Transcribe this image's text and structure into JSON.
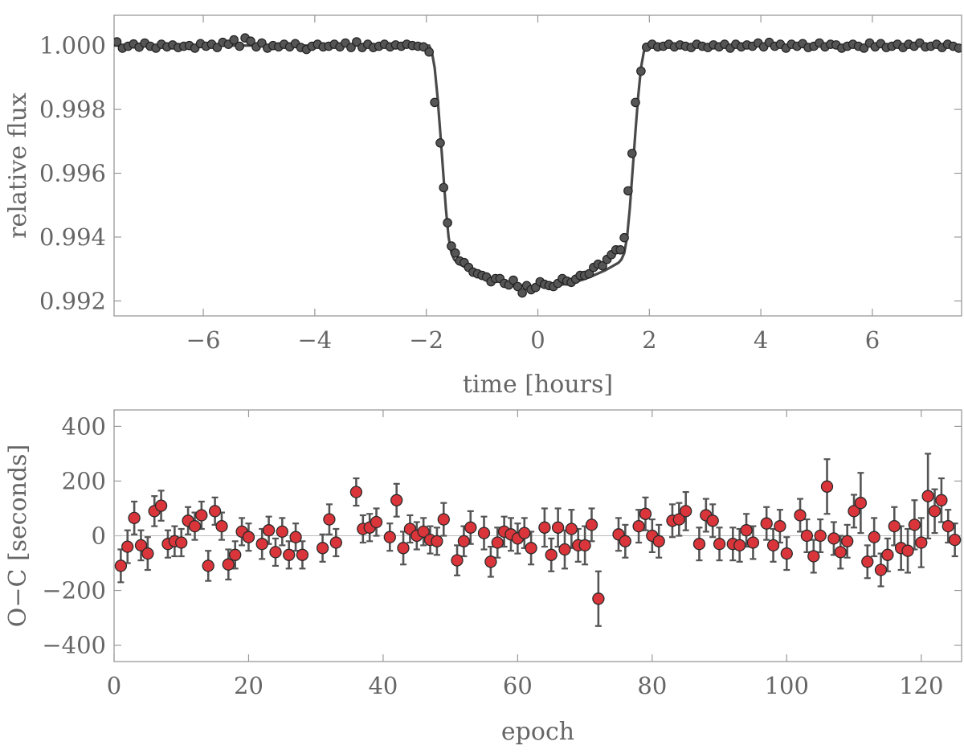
{
  "chart_data": [
    {
      "type": "scatter",
      "name": "transit-light-curve",
      "xlabel": "time [hours]",
      "ylabel": "relative flux",
      "xlim": [
        -7.6,
        7.6
      ],
      "ylim": [
        0.99153,
        1.00095
      ],
      "xticks": [
        -6,
        -4,
        -2,
        0,
        2,
        4,
        6
      ],
      "xtick_labels": [
        "−6",
        "−4",
        "−2",
        "0",
        "2",
        "4",
        "6"
      ],
      "yticks": [
        0.992,
        0.994,
        0.996,
        0.998,
        1.0
      ],
      "ytick_labels": [
        "0.992",
        "0.994",
        "0.996",
        "0.998",
        "1.000"
      ],
      "marker_color": "#555555",
      "model_color": "#4a4a4a",
      "model_line": {
        "x": [
          -7.6,
          -1.95,
          -1.9,
          -1.85,
          -1.8,
          -1.75,
          -1.7,
          -1.65,
          -1.6,
          -1.55,
          -1.5,
          -1.45,
          -1.4,
          -1.2,
          -1.0,
          -0.8,
          -0.6,
          -0.4,
          -0.2,
          0,
          0.2,
          0.4,
          0.6,
          0.8,
          1.0,
          1.2,
          1.4,
          1.45,
          1.5,
          1.55,
          1.6,
          1.65,
          1.7,
          1.75,
          1.8,
          1.85,
          1.9,
          1.95,
          7.6
        ],
        "y": [
          1.0,
          1.0,
          0.9998,
          0.9993,
          0.9984,
          0.9973,
          0.9961,
          0.9949,
          0.994,
          0.9935,
          0.9933,
          0.9932,
          0.99315,
          0.99295,
          0.9928,
          0.99266,
          0.99256,
          0.9925,
          0.99247,
          0.99246,
          0.99247,
          0.9925,
          0.99256,
          0.99266,
          0.9928,
          0.99295,
          0.99315,
          0.9932,
          0.9933,
          0.9935,
          0.994,
          0.9949,
          0.9961,
          0.9973,
          0.9984,
          0.9993,
          0.9998,
          1.0,
          1.0
        ]
      },
      "points": {
        "x": [
          -7.55,
          -7.45,
          -7.35,
          -7.25,
          -7.15,
          -7.05,
          -6.95,
          -6.85,
          -6.75,
          -6.65,
          -6.55,
          -6.45,
          -6.35,
          -6.25,
          -6.15,
          -6.05,
          -5.95,
          -5.85,
          -5.75,
          -5.65,
          -5.55,
          -5.45,
          -5.35,
          -5.25,
          -5.15,
          -5.05,
          -4.95,
          -4.85,
          -4.75,
          -4.65,
          -4.55,
          -4.45,
          -4.35,
          -4.25,
          -4.15,
          -4.05,
          -3.95,
          -3.85,
          -3.75,
          -3.65,
          -3.55,
          -3.45,
          -3.35,
          -3.25,
          -3.15,
          -3.05,
          -2.95,
          -2.85,
          -2.75,
          -2.65,
          -2.55,
          -2.45,
          -2.35,
          -2.25,
          -2.15,
          -2.05,
          -1.95,
          -1.85,
          -1.75,
          -1.69,
          -1.62,
          -1.55,
          -1.48,
          -1.4,
          -1.32,
          -1.24,
          -1.16,
          -1.08,
          -1.0,
          -0.92,
          -0.84,
          -0.76,
          -0.68,
          -0.6,
          -0.52,
          -0.44,
          -0.36,
          -0.28,
          -0.2,
          -0.12,
          -0.04,
          0.04,
          0.12,
          0.2,
          0.28,
          0.36,
          0.44,
          0.52,
          0.6,
          0.68,
          0.76,
          0.84,
          0.92,
          1.0,
          1.08,
          1.16,
          1.24,
          1.32,
          1.4,
          1.48,
          1.55,
          1.62,
          1.69,
          1.75,
          1.85,
          1.95,
          2.05,
          2.15,
          2.25,
          2.35,
          2.45,
          2.55,
          2.65,
          2.75,
          2.85,
          2.95,
          3.05,
          3.15,
          3.25,
          3.35,
          3.45,
          3.55,
          3.65,
          3.75,
          3.85,
          3.95,
          4.05,
          4.15,
          4.25,
          4.35,
          4.45,
          4.55,
          4.65,
          4.75,
          4.85,
          4.95,
          5.05,
          5.15,
          5.25,
          5.35,
          5.45,
          5.55,
          5.65,
          5.75,
          5.85,
          5.95,
          6.05,
          6.15,
          6.25,
          6.35,
          6.45,
          6.55,
          6.65,
          6.75,
          6.85,
          6.95,
          7.05,
          7.15,
          7.25,
          7.35,
          7.45,
          7.55
        ],
        "y": [
          1.00012,
          0.99992,
          0.99998,
          1.00005,
          0.99995,
          1.00008,
          0.99998,
          0.99992,
          1.00004,
          0.99996,
          1.00002,
          0.99994,
          0.99998,
          1.0,
          0.99992,
          1.00006,
          0.99998,
          1.00004,
          0.99994,
          1.0001,
          1.00004,
          1.00018,
          0.99998,
          1.00024,
          1.00014,
          0.99996,
          1.00008,
          0.99992,
          1.0,
          0.99996,
          1.00004,
          0.99996,
          1.00006,
          0.99994,
          0.99988,
          0.99998,
          1.00004,
          0.99996,
          0.99998,
          1.00004,
          0.99996,
          1.00008,
          0.99994,
          1.00012,
          0.99994,
          1.00004,
          0.99994,
          0.99998,
          1.00004,
          0.99996,
          1.00002,
          0.99998,
          1.00004,
          1.0,
          0.99998,
          0.99996,
          0.9998,
          0.99822,
          0.99695,
          0.99555,
          0.99445,
          0.99372,
          0.9935,
          0.99325,
          0.9932,
          0.99305,
          0.9929,
          0.99285,
          0.9928,
          0.99275,
          0.9926,
          0.9927,
          0.9927,
          0.99255,
          0.9925,
          0.99265,
          0.99245,
          0.99225,
          0.99248,
          0.99235,
          0.99242,
          0.9926,
          0.99252,
          0.99248,
          0.99245,
          0.99255,
          0.9927,
          0.99262,
          0.99258,
          0.99268,
          0.9928,
          0.9928,
          0.99285,
          0.99305,
          0.99315,
          0.9931,
          0.9933,
          0.99345,
          0.9936,
          0.9936,
          0.99398,
          0.99545,
          0.99662,
          0.99822,
          0.9992,
          0.99995,
          1.00004,
          0.99996,
          0.99998,
          1.00004,
          0.99996,
          1.00002,
          0.99998,
          0.99994,
          1.00004,
          0.99998,
          0.99994,
          1.00002,
          0.99996,
          1.00004,
          0.99992,
          1.00004,
          0.99996,
          1.00002,
          0.99998,
          1.00008,
          0.99996,
          1.0001,
          0.99998,
          1.00004,
          0.99992,
          1.00004,
          0.99998,
          1.00006,
          0.99994,
          0.99998,
          1.00008,
          0.99996,
          1.00004,
          1.00002,
          0.99992,
          0.99998,
          1.00004,
          0.99998,
          0.99992,
          1.00008,
          0.99996,
          1.00006,
          0.99994,
          0.99998,
          1.00004,
          0.99994,
          1.00004,
          0.99998,
          1.00008,
          0.99996,
          0.99998,
          1.00004,
          0.99994,
          1.00004,
          0.99998,
          0.99992
        ]
      }
    },
    {
      "type": "scatter",
      "name": "o-c-residuals",
      "xlabel": "epoch",
      "ylabel": "O−C [seconds]",
      "xlim": [
        0,
        126
      ],
      "ylim": [
        -460,
        460
      ],
      "xticks": [
        0,
        20,
        40,
        60,
        80,
        100,
        120
      ],
      "xtick_labels": [
        "0",
        "20",
        "40",
        "60",
        "80",
        "100",
        "120"
      ],
      "yticks": [
        -400,
        -200,
        0,
        200,
        400
      ],
      "ytick_labels": [
        "−400",
        "−200",
        "0",
        "200",
        "400"
      ],
      "marker_color": "#d9353a",
      "errorbar_color": "#555555",
      "zero_line": true,
      "epochs": [
        1,
        2,
        3,
        4,
        5,
        6,
        7,
        8,
        9,
        10,
        11,
        12,
        13,
        14,
        15,
        16,
        17,
        18,
        19,
        20,
        22,
        23,
        24,
        25,
        26,
        27,
        28,
        31,
        32,
        33,
        36,
        37,
        38,
        39,
        41,
        42,
        43,
        44,
        45,
        46,
        47,
        48,
        49,
        51,
        52,
        53,
        55,
        56,
        57,
        58,
        59,
        60,
        61,
        62,
        64,
        65,
        66,
        67,
        68,
        69,
        70,
        71,
        72,
        75,
        76,
        78,
        79,
        80,
        81,
        83,
        84,
        85,
        87,
        88,
        89,
        90,
        92,
        93,
        94,
        95,
        97,
        98,
        99,
        100,
        102,
        103,
        104,
        105,
        106,
        107,
        108,
        109,
        110,
        111,
        112,
        113,
        114,
        115,
        116,
        117,
        118,
        119,
        120,
        121,
        122,
        123,
        124,
        125
      ],
      "oc": [
        -110,
        -40,
        65,
        -35,
        -65,
        90,
        110,
        -30,
        -20,
        -25,
        55,
        35,
        75,
        -110,
        90,
        35,
        -105,
        -70,
        15,
        -5,
        -30,
        20,
        -60,
        15,
        -70,
        -5,
        -70,
        -45,
        60,
        -25,
        160,
        25,
        30,
        50,
        -5,
        130,
        -45,
        25,
        0,
        15,
        -15,
        -20,
        60,
        -90,
        -20,
        30,
        10,
        -95,
        -25,
        15,
        5,
        -10,
        10,
        -45,
        30,
        -70,
        30,
        -50,
        25,
        -35,
        -35,
        40,
        -230,
        5,
        -20,
        35,
        80,
        0,
        -20,
        55,
        60,
        90,
        -30,
        75,
        55,
        -30,
        -30,
        -35,
        20,
        -25,
        45,
        -35,
        35,
        -65,
        75,
        0,
        -75,
        0,
        180,
        -10,
        -60,
        -20,
        90,
        120,
        -95,
        -5,
        -125,
        -70,
        35,
        -45,
        -55,
        40,
        -25,
        145,
        90,
        130,
        35,
        -15
      ],
      "err": [
        60,
        60,
        60,
        55,
        60,
        55,
        55,
        50,
        55,
        50,
        50,
        50,
        50,
        55,
        50,
        50,
        55,
        50,
        50,
        50,
        55,
        50,
        50,
        50,
        50,
        50,
        50,
        50,
        55,
        50,
        50,
        50,
        50,
        50,
        50,
        60,
        60,
        50,
        50,
        50,
        50,
        50,
        60,
        55,
        55,
        60,
        60,
        55,
        55,
        55,
        60,
        55,
        55,
        60,
        70,
        60,
        70,
        70,
        70,
        60,
        70,
        60,
        100,
        60,
        60,
        60,
        60,
        60,
        60,
        60,
        60,
        70,
        60,
        60,
        60,
        60,
        60,
        60,
        60,
        60,
        60,
        60,
        60,
        60,
        60,
        60,
        60,
        60,
        100,
        60,
        60,
        60,
        60,
        110,
        60,
        70,
        60,
        60,
        70,
        80,
        80,
        90,
        90,
        155,
        80,
        80,
        60,
        60
      ]
    }
  ]
}
